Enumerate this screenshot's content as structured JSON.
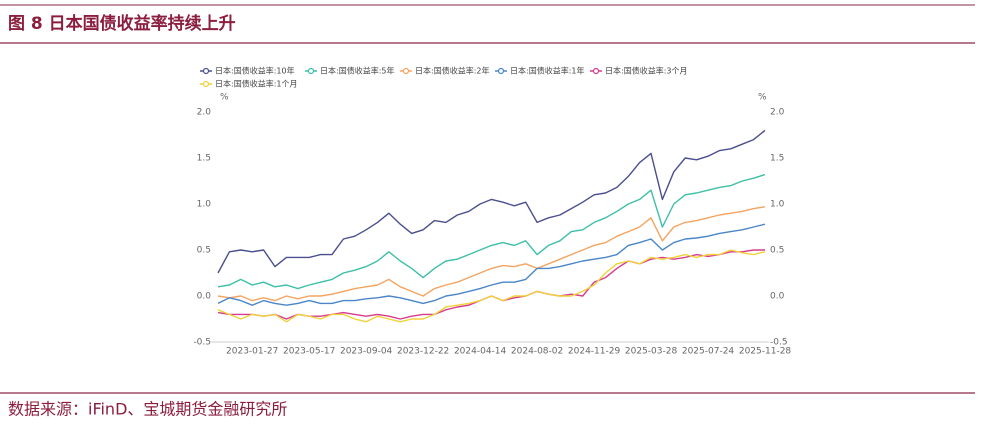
{
  "chart_data": {
    "type": "line",
    "title": "图 8 日本国债收益率持续上升",
    "source": "数据来源：iFinD、宝城期货金融研究所",
    "y_unit": "%",
    "y2_unit": "%",
    "categories": [
      null,
      null,
      null,
      "2023-01-27",
      null,
      null,
      null,
      null,
      "2023-05-17",
      null,
      null,
      null,
      null,
      "2023-09-04",
      null,
      null,
      null,
      null,
      "2023-12-22",
      null,
      null,
      null,
      null,
      "2024-04-14",
      null,
      null,
      null,
      null,
      "2024-08-02",
      null,
      null,
      null,
      null,
      "2024-11-29",
      null,
      null,
      null,
      null,
      "2025-03-28",
      null,
      null,
      null,
      null,
      "2025-07-24",
      null,
      null,
      null,
      null,
      "2025-11-28"
    ],
    "ylim": [
      -0.5,
      2.0
    ],
    "yticks": [
      -0.5,
      {
        "value": 0,
        "label": "0.0"
      },
      0.5,
      {
        "value": 1,
        "label": "1.0"
      },
      1.5,
      {
        "value": 2,
        "label": "2.0"
      }
    ],
    "y2lim": [
      -0.5,
      2.0
    ],
    "y2ticks": [
      -0.5,
      {
        "value": 0,
        "label": "0.0"
      },
      0.5,
      {
        "value": 1,
        "label": "1.0"
      },
      1.5,
      {
        "value": 2,
        "label": "2.0"
      }
    ],
    "grid": false,
    "legend": "top",
    "series": [
      {
        "name": "日本:国债收益率:10年",
        "color": "#4b4f8f",
        "values": [
          0.25,
          0.48,
          0.5,
          0.48,
          0.5,
          0.32,
          0.42,
          0.42,
          0.42,
          0.45,
          0.45,
          0.62,
          0.65,
          0.72,
          0.8,
          0.9,
          0.78,
          0.68,
          0.72,
          0.82,
          0.8,
          0.88,
          0.92,
          1.0,
          1.05,
          1.02,
          0.98,
          1.02,
          0.8,
          0.85,
          0.88,
          0.95,
          1.02,
          1.1,
          1.12,
          1.18,
          1.3,
          1.45,
          1.55,
          1.05,
          1.35,
          1.5,
          1.48,
          1.52,
          1.58,
          1.6,
          1.65,
          1.7,
          1.8
        ]
      },
      {
        "name": "日本:国债收益率:5年",
        "color": "#3dbfa8",
        "values": [
          0.1,
          0.12,
          0.18,
          0.12,
          0.15,
          0.1,
          0.12,
          0.08,
          0.12,
          0.15,
          0.18,
          0.25,
          0.28,
          0.32,
          0.38,
          0.48,
          0.38,
          0.3,
          0.2,
          0.3,
          0.38,
          0.4,
          0.45,
          0.5,
          0.55,
          0.58,
          0.55,
          0.6,
          0.45,
          0.55,
          0.6,
          0.7,
          0.72,
          0.8,
          0.85,
          0.92,
          1.0,
          1.05,
          1.15,
          0.75,
          1.0,
          1.1,
          1.12,
          1.15,
          1.18,
          1.2,
          1.25,
          1.28,
          1.32
        ]
      },
      {
        "name": "日本:国债收益率:2年",
        "color": "#f4a460",
        "values": [
          0,
          -0.02,
          0.0,
          -0.05,
          -0.02,
          -0.05,
          0.0,
          -0.03,
          0.0,
          0.0,
          0.02,
          0.05,
          0.08,
          0.1,
          0.12,
          0.18,
          0.1,
          0.05,
          0.0,
          0.08,
          0.12,
          0.15,
          0.2,
          0.25,
          0.3,
          0.33,
          0.32,
          0.35,
          0.3,
          0.35,
          0.4,
          0.45,
          0.5,
          0.55,
          0.58,
          0.65,
          0.7,
          0.75,
          0.85,
          0.6,
          0.75,
          0.8,
          0.82,
          0.85,
          0.88,
          0.9,
          0.92,
          0.95,
          0.97
        ]
      },
      {
        "name": "日本:国债收益率:1年",
        "color": "#4a86c8",
        "values": [
          -0.08,
          -0.02,
          -0.05,
          -0.1,
          -0.05,
          -0.08,
          -0.1,
          -0.08,
          -0.05,
          -0.08,
          -0.08,
          -0.05,
          -0.05,
          -0.03,
          -0.02,
          0.0,
          -0.02,
          -0.05,
          -0.08,
          -0.05,
          0.0,
          0.02,
          0.05,
          0.08,
          0.12,
          0.15,
          0.15,
          0.18,
          0.3,
          0.3,
          0.32,
          0.35,
          0.38,
          0.4,
          0.42,
          0.45,
          0.55,
          0.58,
          0.62,
          0.5,
          0.58,
          0.62,
          0.63,
          0.65,
          0.68,
          0.7,
          0.72,
          0.75,
          0.78
        ]
      },
      {
        "name": "日本:国债收益率:3个月",
        "color": "#d63c8e",
        "values": [
          -0.18,
          -0.2,
          -0.2,
          -0.2,
          -0.22,
          -0.2,
          -0.25,
          -0.2,
          -0.22,
          -0.22,
          -0.2,
          -0.18,
          -0.2,
          -0.22,
          -0.2,
          -0.22,
          -0.25,
          -0.22,
          -0.2,
          -0.2,
          -0.15,
          -0.12,
          -0.1,
          -0.05,
          0.0,
          -0.05,
          -0.02,
          0.0,
          0.05,
          0.02,
          0.0,
          0.02,
          0.0,
          0.15,
          0.2,
          0.3,
          0.38,
          0.35,
          0.4,
          0.42,
          0.4,
          0.42,
          0.45,
          0.43,
          0.45,
          0.48,
          0.48,
          0.5,
          0.5
        ]
      },
      {
        "name": "日本:国债收益率:1个月",
        "color": "#f0d23a",
        "values": [
          -0.15,
          -0.2,
          -0.25,
          -0.2,
          -0.22,
          -0.2,
          -0.28,
          -0.2,
          -0.22,
          -0.25,
          -0.2,
          -0.2,
          -0.25,
          -0.28,
          -0.22,
          -0.25,
          -0.28,
          -0.25,
          -0.25,
          -0.2,
          -0.12,
          -0.1,
          -0.08,
          -0.05,
          0.0,
          -0.05,
          0.0,
          0.0,
          0.05,
          0.02,
          0.0,
          0.0,
          0.05,
          0.12,
          0.25,
          0.35,
          0.38,
          0.35,
          0.42,
          0.4,
          0.42,
          0.45,
          0.42,
          0.45,
          0.45,
          0.5,
          0.47,
          0.45,
          0.48
        ]
      }
    ]
  }
}
